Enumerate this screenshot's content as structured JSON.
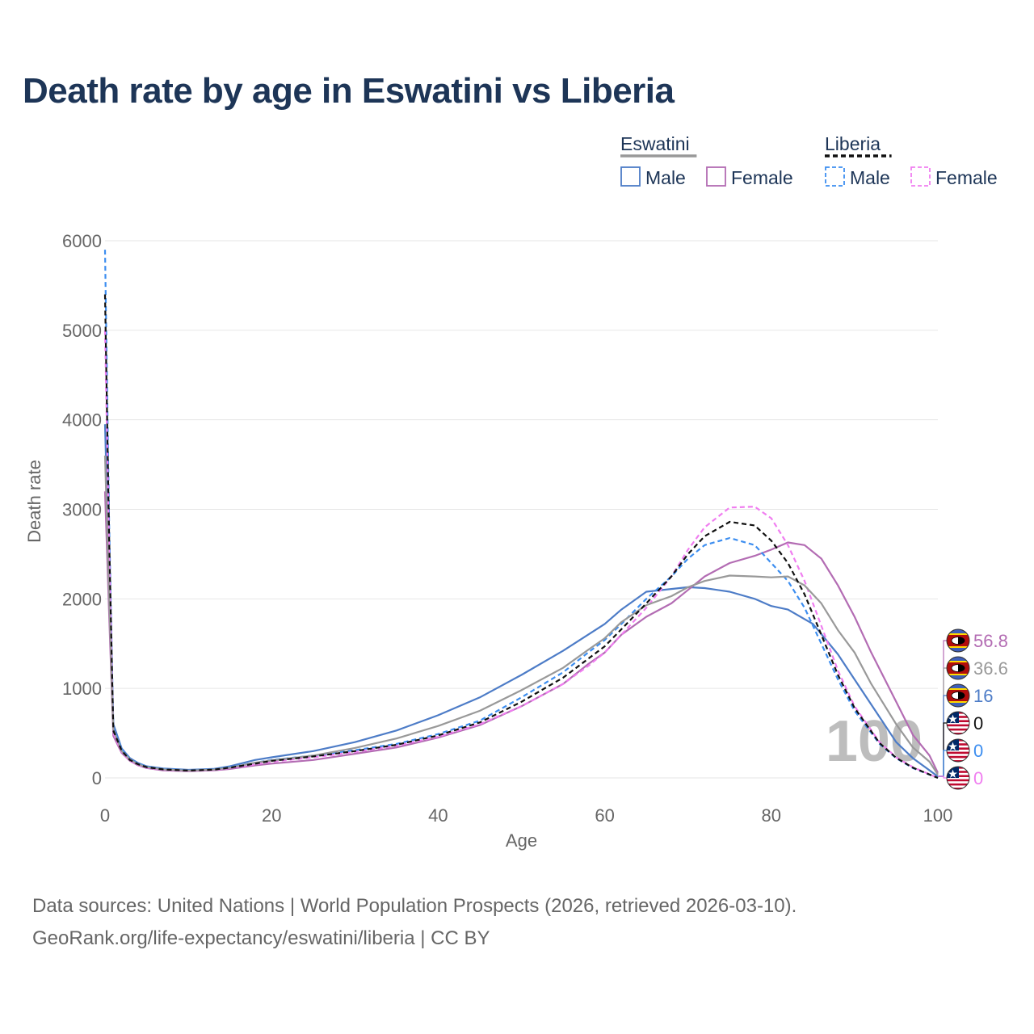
{
  "title": "Death rate by age in Eswatini vs Liberia",
  "legend": {
    "groups": [
      {
        "name": "Eswatini",
        "style": "solid",
        "line_color": "#999999",
        "entries": [
          {
            "label": "Male",
            "color": "#4d7cc7"
          },
          {
            "label": "Female",
            "color": "#b36cb3"
          }
        ]
      },
      {
        "name": "Liberia",
        "style": "dashed",
        "line_color": "#111111",
        "entries": [
          {
            "label": "Male",
            "color": "#3d8ef0"
          },
          {
            "label": "Female",
            "color": "#f07ef0"
          }
        ]
      }
    ]
  },
  "chart_data": {
    "type": "line",
    "xlabel": "Age",
    "ylabel": "Death rate",
    "xlim": [
      0,
      100
    ],
    "ylim": [
      0,
      6000
    ],
    "xticks": [
      0,
      20,
      40,
      60,
      80,
      100
    ],
    "yticks": [
      0,
      1000,
      2000,
      3000,
      4000,
      5000,
      6000
    ],
    "grid": true,
    "watermark": "100",
    "series": [
      {
        "name": "Eswatini Male",
        "color": "#4d7cc7",
        "style": "solid",
        "end_label": "16",
        "points": [
          [
            0,
            3950
          ],
          [
            0.5,
            2200
          ],
          [
            1,
            600
          ],
          [
            2,
            330
          ],
          [
            3,
            220
          ],
          [
            4,
            165
          ],
          [
            5,
            130
          ],
          [
            7,
            105
          ],
          [
            10,
            90
          ],
          [
            13,
            100
          ],
          [
            15,
            130
          ],
          [
            18,
            200
          ],
          [
            20,
            230
          ],
          [
            25,
            300
          ],
          [
            30,
            400
          ],
          [
            35,
            530
          ],
          [
            40,
            700
          ],
          [
            45,
            900
          ],
          [
            50,
            1150
          ],
          [
            55,
            1420
          ],
          [
            58,
            1600
          ],
          [
            60,
            1720
          ],
          [
            62,
            1880
          ],
          [
            65,
            2080
          ],
          [
            68,
            2110
          ],
          [
            70,
            2130
          ],
          [
            72,
            2120
          ],
          [
            75,
            2080
          ],
          [
            78,
            2000
          ],
          [
            80,
            1920
          ],
          [
            82,
            1880
          ],
          [
            85,
            1720
          ],
          [
            88,
            1380
          ],
          [
            90,
            1100
          ],
          [
            93,
            680
          ],
          [
            95,
            400
          ],
          [
            97,
            220
          ],
          [
            100,
            16
          ]
        ]
      },
      {
        "name": "Eswatini Female",
        "color": "#b36cb3",
        "style": "solid",
        "end_label": "56.8",
        "points": [
          [
            0,
            3200
          ],
          [
            0.5,
            1800
          ],
          [
            1,
            470
          ],
          [
            2,
            280
          ],
          [
            3,
            190
          ],
          [
            4,
            140
          ],
          [
            5,
            110
          ],
          [
            7,
            85
          ],
          [
            10,
            75
          ],
          [
            13,
            85
          ],
          [
            15,
            100
          ],
          [
            18,
            140
          ],
          [
            20,
            160
          ],
          [
            25,
            200
          ],
          [
            30,
            270
          ],
          [
            35,
            340
          ],
          [
            40,
            450
          ],
          [
            45,
            590
          ],
          [
            50,
            800
          ],
          [
            55,
            1050
          ],
          [
            58,
            1270
          ],
          [
            60,
            1400
          ],
          [
            62,
            1600
          ],
          [
            65,
            1800
          ],
          [
            68,
            1950
          ],
          [
            70,
            2100
          ],
          [
            72,
            2250
          ],
          [
            75,
            2400
          ],
          [
            78,
            2480
          ],
          [
            80,
            2550
          ],
          [
            82,
            2630
          ],
          [
            84,
            2600
          ],
          [
            86,
            2450
          ],
          [
            88,
            2150
          ],
          [
            90,
            1800
          ],
          [
            92,
            1400
          ],
          [
            95,
            850
          ],
          [
            97,
            480
          ],
          [
            99,
            250
          ],
          [
            100,
            57
          ]
        ]
      },
      {
        "name": "Liberia Male",
        "color": "#3d8ef0",
        "style": "dashed",
        "end_label": "0",
        "points": [
          [
            0,
            5900
          ],
          [
            0.5,
            2800
          ],
          [
            1,
            560
          ],
          [
            2,
            320
          ],
          [
            3,
            210
          ],
          [
            4,
            160
          ],
          [
            5,
            125
          ],
          [
            7,
            100
          ],
          [
            10,
            85
          ],
          [
            13,
            95
          ],
          [
            15,
            120
          ],
          [
            18,
            170
          ],
          [
            20,
            200
          ],
          [
            25,
            250
          ],
          [
            30,
            310
          ],
          [
            35,
            380
          ],
          [
            40,
            490
          ],
          [
            45,
            640
          ],
          [
            50,
            900
          ],
          [
            55,
            1180
          ],
          [
            58,
            1400
          ],
          [
            60,
            1540
          ],
          [
            62,
            1720
          ],
          [
            65,
            2000
          ],
          [
            68,
            2250
          ],
          [
            70,
            2450
          ],
          [
            72,
            2600
          ],
          [
            75,
            2680
          ],
          [
            78,
            2600
          ],
          [
            80,
            2400
          ],
          [
            82,
            2200
          ],
          [
            84,
            1900
          ],
          [
            86,
            1500
          ],
          [
            88,
            1100
          ],
          [
            90,
            750
          ],
          [
            93,
            380
          ],
          [
            95,
            220
          ],
          [
            97,
            110
          ],
          [
            100,
            0
          ]
        ]
      },
      {
        "name": "Liberia Female",
        "color": "#f07ef0",
        "style": "dashed",
        "end_label": "0",
        "points": [
          [
            0,
            5000
          ],
          [
            0.5,
            2500
          ],
          [
            1,
            500
          ],
          [
            2,
            290
          ],
          [
            3,
            190
          ],
          [
            4,
            145
          ],
          [
            5,
            115
          ],
          [
            7,
            90
          ],
          [
            10,
            80
          ],
          [
            13,
            88
          ],
          [
            15,
            110
          ],
          [
            18,
            150
          ],
          [
            20,
            180
          ],
          [
            25,
            230
          ],
          [
            30,
            290
          ],
          [
            35,
            360
          ],
          [
            40,
            460
          ],
          [
            45,
            600
          ],
          [
            50,
            800
          ],
          [
            55,
            1050
          ],
          [
            58,
            1250
          ],
          [
            60,
            1400
          ],
          [
            62,
            1600
          ],
          [
            65,
            1900
          ],
          [
            68,
            2250
          ],
          [
            70,
            2550
          ],
          [
            72,
            2800
          ],
          [
            75,
            3020
          ],
          [
            78,
            3030
          ],
          [
            80,
            2900
          ],
          [
            82,
            2600
          ],
          [
            84,
            2200
          ],
          [
            86,
            1700
          ],
          [
            88,
            1200
          ],
          [
            90,
            800
          ],
          [
            93,
            400
          ],
          [
            95,
            230
          ],
          [
            97,
            120
          ],
          [
            100,
            0
          ]
        ]
      },
      {
        "name": "Eswatini Total",
        "color": "#999999",
        "style": "solid",
        "end_label": "36.6",
        "points": [
          [
            0,
            3600
          ],
          [
            0.5,
            2000
          ],
          [
            1,
            540
          ],
          [
            2,
            300
          ],
          [
            3,
            205
          ],
          [
            4,
            152
          ],
          [
            5,
            120
          ],
          [
            7,
            95
          ],
          [
            10,
            82
          ],
          [
            13,
            92
          ],
          [
            15,
            115
          ],
          [
            18,
            170
          ],
          [
            20,
            195
          ],
          [
            25,
            250
          ],
          [
            30,
            335
          ],
          [
            35,
            440
          ],
          [
            40,
            580
          ],
          [
            45,
            750
          ],
          [
            50,
            980
          ],
          [
            55,
            1230
          ],
          [
            58,
            1430
          ],
          [
            60,
            1560
          ],
          [
            62,
            1740
          ],
          [
            65,
            1930
          ],
          [
            68,
            2030
          ],
          [
            70,
            2130
          ],
          [
            72,
            2200
          ],
          [
            75,
            2260
          ],
          [
            78,
            2250
          ],
          [
            80,
            2240
          ],
          [
            82,
            2250
          ],
          [
            84,
            2150
          ],
          [
            86,
            1950
          ],
          [
            88,
            1650
          ],
          [
            90,
            1400
          ],
          [
            92,
            1050
          ],
          [
            95,
            600
          ],
          [
            97,
            340
          ],
          [
            99,
            180
          ],
          [
            100,
            37
          ]
        ]
      },
      {
        "name": "Liberia Total",
        "color": "#111111",
        "style": "dashed",
        "end_label": "0",
        "points": [
          [
            0,
            5400
          ],
          [
            0.5,
            2650
          ],
          [
            1,
            530
          ],
          [
            2,
            305
          ],
          [
            3,
            200
          ],
          [
            4,
            152
          ],
          [
            5,
            120
          ],
          [
            7,
            95
          ],
          [
            10,
            82
          ],
          [
            13,
            92
          ],
          [
            15,
            115
          ],
          [
            18,
            160
          ],
          [
            20,
            190
          ],
          [
            25,
            240
          ],
          [
            30,
            300
          ],
          [
            35,
            370
          ],
          [
            40,
            475
          ],
          [
            45,
            620
          ],
          [
            50,
            850
          ],
          [
            55,
            1120
          ],
          [
            58,
            1330
          ],
          [
            60,
            1470
          ],
          [
            62,
            1660
          ],
          [
            65,
            1950
          ],
          [
            68,
            2250
          ],
          [
            70,
            2500
          ],
          [
            72,
            2700
          ],
          [
            75,
            2860
          ],
          [
            78,
            2820
          ],
          [
            80,
            2650
          ],
          [
            82,
            2400
          ],
          [
            84,
            2050
          ],
          [
            86,
            1600
          ],
          [
            88,
            1150
          ],
          [
            90,
            780
          ],
          [
            93,
            390
          ],
          [
            95,
            225
          ],
          [
            97,
            115
          ],
          [
            100,
            0
          ]
        ]
      }
    ],
    "end_markers": [
      {
        "label": "56.8",
        "country": "Eswatini",
        "color": "#b36cb3"
      },
      {
        "label": "36.6",
        "country": "Eswatini",
        "color": "#999999"
      },
      {
        "label": "16",
        "country": "Eswatini",
        "color": "#4d7cc7"
      },
      {
        "label": "0",
        "country": "Liberia",
        "color": "#111111"
      },
      {
        "label": "0",
        "country": "Liberia",
        "color": "#3d8ef0"
      },
      {
        "label": "0",
        "country": "Liberia",
        "color": "#f07ef0"
      }
    ]
  },
  "sources": {
    "line1": "Data sources: United Nations | World Population Prospects (2026, retrieved 2026-03-10).",
    "line2": "GeoRank.org/life-expectancy/eswatini/liberia | CC BY"
  }
}
